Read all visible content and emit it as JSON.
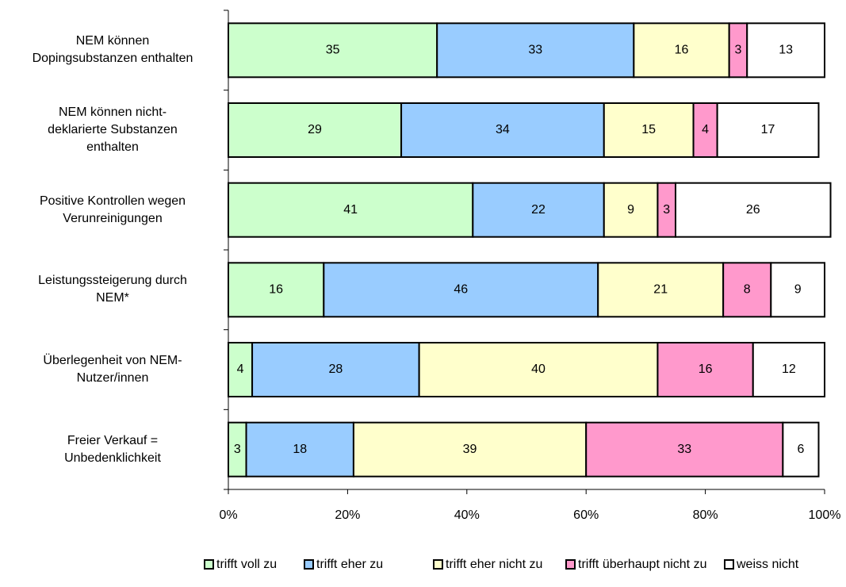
{
  "chart_data": {
    "type": "stacked_bar_horizontal",
    "categories": [
      "NEM können\nDopingsubstanzen enthalten",
      "NEM können nicht-\ndeklarierte Substanzen\nenthalten",
      "Positive Kontrollen wegen\nVerunreinigungen",
      "Leistungssteigerung durch\nNEM*",
      "Überlegenheit von NEM-\nNutzer/innen",
      "Freier Verkauf =\nUnbedenklichkeit"
    ],
    "series": [
      {
        "name": "trifft voll zu",
        "color": "#ccffcc",
        "values": [
          35,
          29,
          41,
          16,
          4,
          3
        ]
      },
      {
        "name": "trifft eher zu",
        "color": "#99ccff",
        "values": [
          33,
          34,
          22,
          46,
          28,
          18
        ]
      },
      {
        "name": "trifft eher nicht zu",
        "color": "#ffffcc",
        "values": [
          16,
          15,
          9,
          21,
          40,
          39
        ]
      },
      {
        "name": "trifft überhaupt nicht zu",
        "color": "#ff99cc",
        "values": [
          3,
          4,
          3,
          8,
          16,
          33
        ]
      },
      {
        "name": "weiss nicht",
        "color": "#ffffff",
        "values": [
          13,
          17,
          26,
          9,
          12,
          6
        ]
      }
    ],
    "xlim": [
      0,
      100
    ],
    "xticks": [
      {
        "value": 0,
        "label": "0%"
      },
      {
        "value": 20,
        "label": "20%"
      },
      {
        "value": 40,
        "label": "40%"
      },
      {
        "value": 60,
        "label": "60%"
      },
      {
        "value": 80,
        "label": "80%"
      },
      {
        "value": 100,
        "label": "100%"
      }
    ],
    "legend": "bottom"
  }
}
